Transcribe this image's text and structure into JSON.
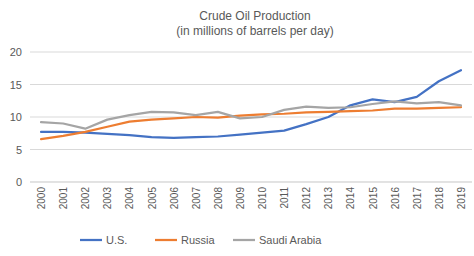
{
  "chart_data": {
    "type": "line",
    "title": "Crude Oil Production",
    "subtitle": "(in millions of barrels per day)",
    "categories": [
      "2000",
      "2001",
      "2002",
      "2003",
      "2004",
      "2005",
      "2006",
      "2007",
      "2008",
      "2009",
      "2010",
      "2011",
      "2012",
      "2013",
      "2014",
      "2015",
      "2016",
      "2017",
      "2018",
      "2019"
    ],
    "series": [
      {
        "name": "U.S.",
        "color": "#4472c4",
        "values": [
          7.7,
          7.7,
          7.6,
          7.4,
          7.2,
          6.9,
          6.8,
          6.9,
          7.0,
          7.3,
          7.6,
          7.9,
          8.9,
          10.0,
          11.8,
          12.7,
          12.3,
          13.1,
          15.5,
          17.2
        ]
      },
      {
        "name": "Russia",
        "color": "#ed7d31",
        "values": [
          6.6,
          7.1,
          7.7,
          8.5,
          9.3,
          9.6,
          9.8,
          10.0,
          9.9,
          10.2,
          10.4,
          10.5,
          10.7,
          10.8,
          10.9,
          11.0,
          11.3,
          11.3,
          11.4,
          11.5
        ]
      },
      {
        "name": "Saudi Arabia",
        "color": "#a5a5a5",
        "values": [
          9.2,
          9.0,
          8.2,
          9.6,
          10.3,
          10.8,
          10.7,
          10.3,
          10.8,
          9.8,
          10.0,
          11.1,
          11.6,
          11.4,
          11.5,
          12.0,
          12.4,
          12.1,
          12.3,
          11.8
        ]
      }
    ],
    "ylim": [
      0,
      20
    ],
    "yticks": [
      0,
      5,
      10,
      15,
      20
    ],
    "grid": true,
    "legend": "bottom"
  }
}
